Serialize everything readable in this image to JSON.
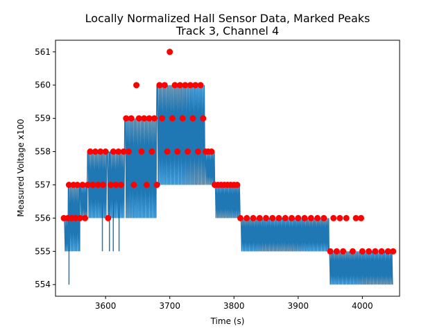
{
  "chart_data": {
    "type": "line",
    "title": "Locally Normalized Hall Sensor Data, Marked Peaks",
    "subtitle": "Track 3, Channel 4",
    "xlabel": "Time (s)",
    "ylabel": "Measured Voltage x100",
    "xlim": [
      3522,
      4058
    ],
    "ylim": [
      553.65,
      561.35
    ],
    "xticks": [
      3600,
      3700,
      3800,
      3900,
      4000
    ],
    "yticks": [
      554,
      555,
      556,
      557,
      558,
      559,
      560,
      561
    ],
    "grid": false,
    "legend": "none",
    "colors": {
      "signal": "#1f77b4",
      "peaks": "#ff0000"
    },
    "series": [
      {
        "kind": "signal",
        "segments": [
          {
            "x_start": 3535,
            "x_end": 3542,
            "high": 556,
            "low": 555
          },
          {
            "x_start": 3542,
            "x_end": 3560,
            "high": 557,
            "low": 555
          },
          {
            "x_start": 3560,
            "x_end": 3572,
            "high": 557,
            "low": 556
          },
          {
            "x_start": 3572,
            "x_end": 3602,
            "high": 558,
            "low": 556
          },
          {
            "x_start": 3602,
            "x_end": 3630,
            "high": 558,
            "low": 556
          },
          {
            "x_start": 3630,
            "x_end": 3680,
            "high": 559,
            "low": 556
          },
          {
            "x_start": 3680,
            "x_end": 3755,
            "high": 560,
            "low": 557
          },
          {
            "x_start": 3755,
            "x_end": 3770,
            "high": 558,
            "low": 557
          },
          {
            "x_start": 3770,
            "x_end": 3810,
            "high": 557,
            "low": 556
          },
          {
            "x_start": 3810,
            "x_end": 3948,
            "high": 556,
            "low": 555
          },
          {
            "x_start": 3948,
            "x_end": 4048,
            "high": 555,
            "low": 554
          }
        ],
        "drops": [
          {
            "x": 3543,
            "y": 554
          },
          {
            "x": 3595,
            "y": 555
          },
          {
            "x": 3606,
            "y": 555
          },
          {
            "x": 3612,
            "y": 555
          },
          {
            "x": 3621,
            "y": 555
          }
        ]
      },
      {
        "kind": "peaks",
        "points": [
          {
            "x": 3535,
            "y": 556
          },
          {
            "x": 3541,
            "y": 556
          },
          {
            "x": 3543,
            "y": 557
          },
          {
            "x": 3547,
            "y": 556
          },
          {
            "x": 3550,
            "y": 557
          },
          {
            "x": 3553,
            "y": 556
          },
          {
            "x": 3556,
            "y": 557
          },
          {
            "x": 3560,
            "y": 556
          },
          {
            "x": 3564,
            "y": 557
          },
          {
            "x": 3568,
            "y": 556
          },
          {
            "x": 3572,
            "y": 557
          },
          {
            "x": 3576,
            "y": 558
          },
          {
            "x": 3580,
            "y": 557
          },
          {
            "x": 3584,
            "y": 558
          },
          {
            "x": 3588,
            "y": 557
          },
          {
            "x": 3592,
            "y": 558
          },
          {
            "x": 3596,
            "y": 557
          },
          {
            "x": 3600,
            "y": 558
          },
          {
            "x": 3604,
            "y": 556
          },
          {
            "x": 3608,
            "y": 557
          },
          {
            "x": 3612,
            "y": 558
          },
          {
            "x": 3616,
            "y": 557
          },
          {
            "x": 3620,
            "y": 558
          },
          {
            "x": 3624,
            "y": 557
          },
          {
            "x": 3628,
            "y": 558
          },
          {
            "x": 3632,
            "y": 559
          },
          {
            "x": 3636,
            "y": 558
          },
          {
            "x": 3640,
            "y": 559
          },
          {
            "x": 3644,
            "y": 557
          },
          {
            "x": 3648,
            "y": 560
          },
          {
            "x": 3652,
            "y": 559
          },
          {
            "x": 3656,
            "y": 558
          },
          {
            "x": 3660,
            "y": 559
          },
          {
            "x": 3664,
            "y": 557
          },
          {
            "x": 3668,
            "y": 559
          },
          {
            "x": 3672,
            "y": 558
          },
          {
            "x": 3676,
            "y": 559
          },
          {
            "x": 3680,
            "y": 557
          },
          {
            "x": 3684,
            "y": 560
          },
          {
            "x": 3688,
            "y": 559
          },
          {
            "x": 3692,
            "y": 560
          },
          {
            "x": 3696,
            "y": 558
          },
          {
            "x": 3700,
            "y": 561
          },
          {
            "x": 3704,
            "y": 559
          },
          {
            "x": 3708,
            "y": 560
          },
          {
            "x": 3712,
            "y": 558
          },
          {
            "x": 3716,
            "y": 560
          },
          {
            "x": 3720,
            "y": 559
          },
          {
            "x": 3724,
            "y": 560
          },
          {
            "x": 3728,
            "y": 558
          },
          {
            "x": 3732,
            "y": 560
          },
          {
            "x": 3736,
            "y": 559
          },
          {
            "x": 3740,
            "y": 560
          },
          {
            "x": 3744,
            "y": 558
          },
          {
            "x": 3748,
            "y": 560
          },
          {
            "x": 3752,
            "y": 559
          },
          {
            "x": 3756,
            "y": 558
          },
          {
            "x": 3760,
            "y": 558
          },
          {
            "x": 3765,
            "y": 558
          },
          {
            "x": 3770,
            "y": 557
          },
          {
            "x": 3775,
            "y": 557
          },
          {
            "x": 3780,
            "y": 557
          },
          {
            "x": 3785,
            "y": 557
          },
          {
            "x": 3790,
            "y": 557
          },
          {
            "x": 3795,
            "y": 557
          },
          {
            "x": 3800,
            "y": 557
          },
          {
            "x": 3805,
            "y": 557
          },
          {
            "x": 3810,
            "y": 556
          },
          {
            "x": 3820,
            "y": 556
          },
          {
            "x": 3830,
            "y": 556
          },
          {
            "x": 3840,
            "y": 556
          },
          {
            "x": 3850,
            "y": 556
          },
          {
            "x": 3860,
            "y": 556
          },
          {
            "x": 3870,
            "y": 556
          },
          {
            "x": 3880,
            "y": 556
          },
          {
            "x": 3890,
            "y": 556
          },
          {
            "x": 3900,
            "y": 556
          },
          {
            "x": 3910,
            "y": 556
          },
          {
            "x": 3920,
            "y": 556
          },
          {
            "x": 3930,
            "y": 556
          },
          {
            "x": 3940,
            "y": 556
          },
          {
            "x": 3950,
            "y": 555
          },
          {
            "x": 3955,
            "y": 556
          },
          {
            "x": 3960,
            "y": 555
          },
          {
            "x": 3965,
            "y": 556
          },
          {
            "x": 3970,
            "y": 555
          },
          {
            "x": 3975,
            "y": 556
          },
          {
            "x": 3985,
            "y": 555
          },
          {
            "x": 3990,
            "y": 556
          },
          {
            "x": 3998,
            "y": 556
          },
          {
            "x": 4000,
            "y": 555
          },
          {
            "x": 4010,
            "y": 555
          },
          {
            "x": 4020,
            "y": 555
          },
          {
            "x": 4030,
            "y": 555
          },
          {
            "x": 4040,
            "y": 555
          },
          {
            "x": 4048,
            "y": 555
          }
        ]
      }
    ]
  }
}
